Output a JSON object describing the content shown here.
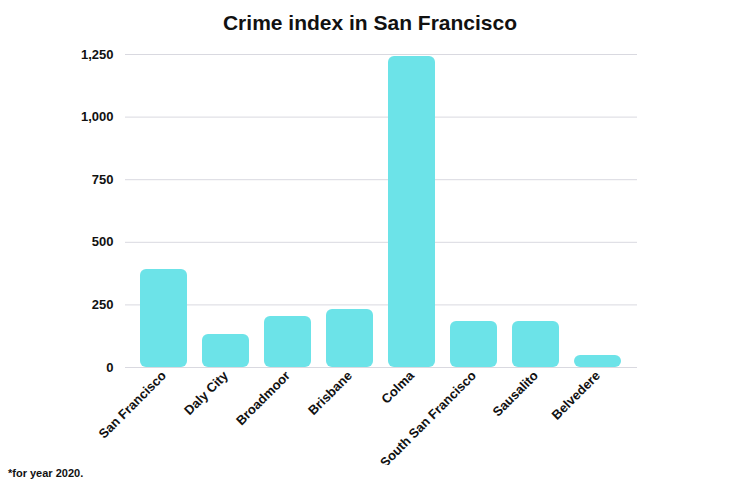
{
  "chart_data": {
    "type": "bar",
    "title": "Crime index in San Francisco",
    "categories": [
      "San Francisco",
      "Daly City",
      "Broadmoor",
      "Brisbane",
      "Colma",
      "South San Francisco",
      "Sausalito",
      "Belvedere"
    ],
    "values": [
      391,
      132,
      204,
      232,
      1242,
      184,
      184,
      48
    ],
    "color": "#6ce3e8",
    "ylim": [
      0,
      1250
    ],
    "yticks": [
      0,
      250,
      500,
      750,
      {
        "value": 1000,
        "label": "1,000"
      },
      {
        "value": 1250,
        "label": "1,250"
      }
    ],
    "grid": true,
    "annotations": [
      "*for year 2020."
    ]
  }
}
